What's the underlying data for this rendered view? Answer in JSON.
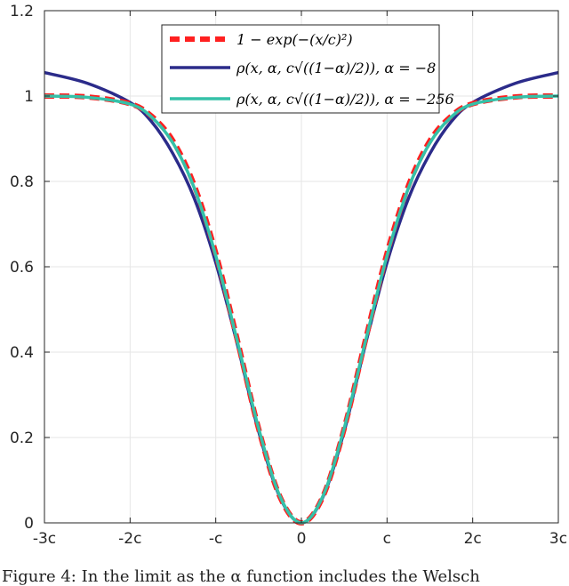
{
  "chart_data": {
    "type": "line",
    "title": "",
    "xlabel": "",
    "ylabel": "",
    "xlim": [
      -3,
      3
    ],
    "ylim": [
      0,
      1.2
    ],
    "grid": true,
    "legend_position": "top-center",
    "x_ticks": [
      {
        "value": -3,
        "label": "-3c"
      },
      {
        "value": -2,
        "label": "-2c"
      },
      {
        "value": -1,
        "label": "-c"
      },
      {
        "value": 0,
        "label": "0"
      },
      {
        "value": 1,
        "label": "c"
      },
      {
        "value": 2,
        "label": "2c"
      },
      {
        "value": 3,
        "label": "3c"
      }
    ],
    "y_ticks": [
      {
        "value": 0,
        "label": "0"
      },
      {
        "value": 0.2,
        "label": "0.2"
      },
      {
        "value": 0.4,
        "label": "0.4"
      },
      {
        "value": 0.6,
        "label": "0.6"
      },
      {
        "value": 0.8,
        "label": "0.8"
      },
      {
        "value": 1,
        "label": "1"
      },
      {
        "value": 1.2,
        "label": "1.2"
      }
    ],
    "series": [
      {
        "name": "1 − exp(−(x/c)²)",
        "color": "#ff2020",
        "style": "dashed",
        "x": [
          -3,
          -2.5,
          -2,
          -1.75,
          -1.5,
          -1.25,
          -1,
          -0.75,
          -0.5,
          -0.25,
          0,
          0.25,
          0.5,
          0.75,
          1,
          1.25,
          1.5,
          1.75,
          2,
          2.5,
          3
        ],
        "y": [
          1.0,
          0.998,
          0.982,
          0.953,
          0.895,
          0.79,
          0.632,
          0.43,
          0.221,
          0.061,
          0,
          0.061,
          0.221,
          0.43,
          0.632,
          0.79,
          0.895,
          0.953,
          0.982,
          0.998,
          1.0
        ]
      },
      {
        "name": "ρ(x, α, c√((1−α)/2)), α = −8",
        "color": "#2b2b8a",
        "style": "solid",
        "x": [
          -3,
          -2.5,
          -2,
          -1.75,
          -1.5,
          -1.25,
          -1,
          -0.75,
          -0.5,
          -0.25,
          0,
          0.25,
          0.5,
          0.75,
          1,
          1.25,
          1.5,
          1.75,
          2,
          2.5,
          3
        ],
        "y": [
          1.055,
          1.03,
          0.985,
          0.94,
          0.865,
          0.76,
          0.61,
          0.42,
          0.215,
          0.06,
          0,
          0.06,
          0.215,
          0.42,
          0.61,
          0.76,
          0.865,
          0.94,
          0.985,
          1.03,
          1.055
        ]
      },
      {
        "name": "ρ(x, α, c√((1−α)/2)), α = −256",
        "color": "#35c1a8",
        "style": "solid",
        "x": [
          -3,
          -2.5,
          -2,
          -1.75,
          -1.5,
          -1.25,
          -1,
          -0.75,
          -0.5,
          -0.25,
          0,
          0.25,
          0.5,
          0.75,
          1,
          1.25,
          1.5,
          1.75,
          2,
          2.5,
          3
        ],
        "y": [
          1.0,
          0.997,
          0.981,
          0.951,
          0.89,
          0.784,
          0.626,
          0.427,
          0.222,
          0.062,
          0,
          0.062,
          0.222,
          0.427,
          0.626,
          0.784,
          0.89,
          0.951,
          0.981,
          0.997,
          1.0
        ]
      }
    ]
  },
  "caption": "Figure 4: In the limit as the α function includes the Welsch"
}
